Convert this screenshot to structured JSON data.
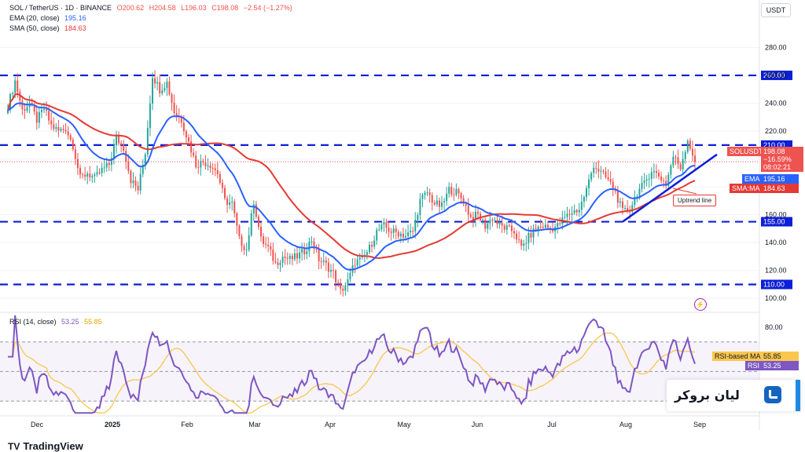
{
  "legend": {
    "symbol": "SOL / TetherUS · 1D · BINANCE",
    "open": "O200.62",
    "high": "H204.58",
    "low": "L196.03",
    "close": "C198.08",
    "change": "−2.54 (−1.27%)",
    "ema_label": "EMA (20, close)",
    "ema_value": "195.16",
    "sma_label": "SMA (50, close)",
    "sma_value": "184.63",
    "rsi_label": "RSI (14, close)",
    "rsi_value": "53.25",
    "rsi_ma_value": "55.85"
  },
  "currency_button": "USDT",
  "tags": {
    "solusdt_name": "SOLUSDT",
    "solusdt_price": "198.08",
    "solusdt_change": "−16.59%",
    "solusdt_timer": "08:02:21",
    "ema_name": "EMA",
    "ema_value": "195.16",
    "sma_name": "SMA:MA",
    "sma_value": "184.63",
    "rsi_ma_name": "RSI-based MA",
    "rsi_ma_value": "55.85",
    "rsi_name": "RSI",
    "rsi_value": "53.25"
  },
  "annotation": "Uptrend line",
  "brand": {
    "text": "لیان بروکر"
  },
  "tradingview_logo": "TradingView",
  "colors": {
    "up": "#26a69a",
    "down": "#ef5350",
    "ema": "#2962ff",
    "sma": "#e53935",
    "rsi": "#7e57c2",
    "rsi_ma": "#f9c74f",
    "level": "#0d1fd6"
  },
  "chart_data": [
    {
      "type": "candlestick",
      "title": "SOL / TetherUS · 1D · BINANCE",
      "ylabel": "USDT",
      "ylim": [
        90,
        300
      ],
      "yticks": [
        100,
        120,
        140,
        160,
        180,
        200,
        220,
        240,
        260,
        280
      ],
      "x_labels": [
        "Dec",
        "2025",
        "Feb",
        "Mar",
        "Apr",
        "May",
        "Jun",
        "Jul",
        "Aug",
        "Sep"
      ],
      "levels": [
        {
          "value": 260,
          "label": "260.00"
        },
        {
          "value": 210,
          "label": "210.00"
        },
        {
          "value": 155,
          "label": "155.00"
        },
        {
          "value": 110,
          "label": "110.00"
        }
      ],
      "trendline": {
        "start": {
          "x": "Aug 2",
          "y": 155
        },
        "end": {
          "x": "Sep 1",
          "y": 192
        }
      },
      "closes": [
        {
          "date": "Nov 20",
          "close": 238
        },
        {
          "date": "Nov 23",
          "close": 256
        },
        {
          "date": "Nov 26",
          "close": 235
        },
        {
          "date": "Nov 29",
          "close": 240
        },
        {
          "date": "Dec 2",
          "close": 228
        },
        {
          "date": "Dec 5",
          "close": 236
        },
        {
          "date": "Dec 8",
          "close": 224
        },
        {
          "date": "Dec 11",
          "close": 220
        },
        {
          "date": "Dec 14",
          "close": 222
        },
        {
          "date": "Dec 17",
          "close": 210
        },
        {
          "date": "Dec 20",
          "close": 186
        },
        {
          "date": "Dec 23",
          "close": 190
        },
        {
          "date": "Dec 26",
          "close": 186
        },
        {
          "date": "Dec 29",
          "close": 192
        },
        {
          "date": "Jan 1",
          "close": 196
        },
        {
          "date": "Jan 4",
          "close": 215
        },
        {
          "date": "Jan 7",
          "close": 208
        },
        {
          "date": "Jan 10",
          "close": 185
        },
        {
          "date": "Jan 13",
          "close": 178
        },
        {
          "date": "Jan 16",
          "close": 205
        },
        {
          "date": "Jan 19",
          "close": 260
        },
        {
          "date": "Jan 22",
          "close": 250
        },
        {
          "date": "Jan 25",
          "close": 255
        },
        {
          "date": "Jan 28",
          "close": 234
        },
        {
          "date": "Jan 31",
          "close": 228
        },
        {
          "date": "Feb 3",
          "close": 212
        },
        {
          "date": "Feb 6",
          "close": 196
        },
        {
          "date": "Feb 9",
          "close": 198
        },
        {
          "date": "Feb 12",
          "close": 196
        },
        {
          "date": "Feb 15",
          "close": 190
        },
        {
          "date": "Feb 18",
          "close": 170
        },
        {
          "date": "Feb 21",
          "close": 168
        },
        {
          "date": "Feb 24",
          "close": 142
        },
        {
          "date": "Feb 27",
          "close": 135
        },
        {
          "date": "Mar 2",
          "close": 170
        },
        {
          "date": "Mar 5",
          "close": 142
        },
        {
          "date": "Mar 8",
          "close": 136
        },
        {
          "date": "Mar 11",
          "close": 125
        },
        {
          "date": "Mar 14",
          "close": 130
        },
        {
          "date": "Mar 17",
          "close": 128
        },
        {
          "date": "Mar 20",
          "close": 130
        },
        {
          "date": "Mar 23",
          "close": 134
        },
        {
          "date": "Mar 26",
          "close": 142
        },
        {
          "date": "Mar 29",
          "close": 128
        },
        {
          "date": "Apr 1",
          "close": 124
        },
        {
          "date": "Apr 4",
          "close": 118
        },
        {
          "date": "Apr 7",
          "close": 105
        },
        {
          "date": "Apr 10",
          "close": 112
        },
        {
          "date": "Apr 13",
          "close": 126
        },
        {
          "date": "Apr 16",
          "close": 128
        },
        {
          "date": "Apr 19",
          "close": 136
        },
        {
          "date": "Apr 22",
          "close": 148
        },
        {
          "date": "Apr 25",
          "close": 152
        },
        {
          "date": "Apr 28",
          "close": 148
        },
        {
          "date": "May 1",
          "close": 147
        },
        {
          "date": "May 4",
          "close": 145
        },
        {
          "date": "May 7",
          "close": 148
        },
        {
          "date": "May 10",
          "close": 170
        },
        {
          "date": "May 13",
          "close": 176
        },
        {
          "date": "May 16",
          "close": 168
        },
        {
          "date": "May 19",
          "close": 166
        },
        {
          "date": "May 22",
          "close": 178
        },
        {
          "date": "May 25",
          "close": 176
        },
        {
          "date": "May 28",
          "close": 170
        },
        {
          "date": "May 31",
          "close": 158
        },
        {
          "date": "Jun 3",
          "close": 160
        },
        {
          "date": "Jun 6",
          "close": 152
        },
        {
          "date": "Jun 9",
          "close": 158
        },
        {
          "date": "Jun 12",
          "close": 152
        },
        {
          "date": "Jun 15",
          "close": 150
        },
        {
          "date": "Jun 18",
          "close": 148
        },
        {
          "date": "Jun 21",
          "close": 136
        },
        {
          "date": "Jun 24",
          "close": 144
        },
        {
          "date": "Jun 27",
          "close": 150
        },
        {
          "date": "Jun 30",
          "close": 152
        },
        {
          "date": "Jul 3",
          "close": 150
        },
        {
          "date": "Jul 6",
          "close": 152
        },
        {
          "date": "Jul 9",
          "close": 158
        },
        {
          "date": "Jul 12",
          "close": 162
        },
        {
          "date": "Jul 15",
          "close": 164
        },
        {
          "date": "Jul 18",
          "close": 178
        },
        {
          "date": "Jul 21",
          "close": 196
        },
        {
          "date": "Jul 24",
          "close": 190
        },
        {
          "date": "Jul 27",
          "close": 185
        },
        {
          "date": "Jul 30",
          "close": 176
        },
        {
          "date": "Aug 2",
          "close": 162
        },
        {
          "date": "Aug 5",
          "close": 164
        },
        {
          "date": "Aug 8",
          "close": 176
        },
        {
          "date": "Aug 11",
          "close": 182
        },
        {
          "date": "Aug 14",
          "close": 192
        },
        {
          "date": "Aug 17",
          "close": 188
        },
        {
          "date": "Aug 20",
          "close": 182
        },
        {
          "date": "Aug 23",
          "close": 202
        },
        {
          "date": "Aug 26",
          "close": 194
        },
        {
          "date": "Aug 29",
          "close": 214
        },
        {
          "date": "Sep 1",
          "close": 198
        }
      ],
      "series": [
        {
          "name": "EMA (20, close)",
          "last": 195.16
        },
        {
          "name": "SMA (50, close)",
          "last": 184.63
        }
      ]
    },
    {
      "type": "line",
      "title": "RSI (14, close)",
      "ylim": [
        20,
        90
      ],
      "yticks": [
        80
      ],
      "bands": [
        70,
        50,
        30
      ],
      "series": [
        {
          "name": "RSI",
          "last": 53.25
        },
        {
          "name": "RSI-based MA",
          "last": 55.85
        }
      ]
    }
  ]
}
